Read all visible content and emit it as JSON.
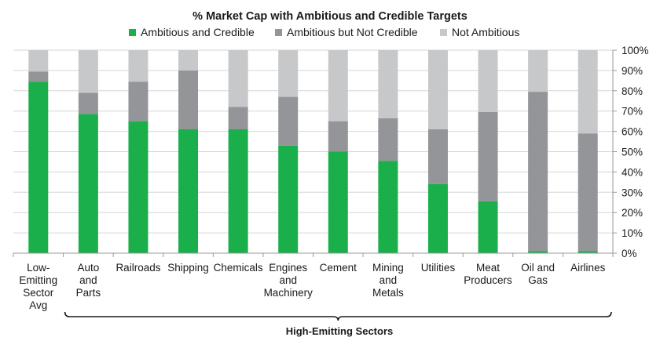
{
  "chart_data": {
    "type": "bar",
    "stacked": true,
    "title": "% Market Cap with Ambitious and Credible Targets",
    "categories": [
      [
        "Low-",
        "Emitting",
        "Sector",
        "Avg"
      ],
      [
        "Auto",
        "and",
        "Parts"
      ],
      [
        "Railroads"
      ],
      [
        "Shipping"
      ],
      [
        "Chemicals"
      ],
      [
        "Engines",
        "and",
        "Machinery"
      ],
      [
        "Cement"
      ],
      [
        "Mining",
        "and",
        "Metals"
      ],
      [
        "Utilities"
      ],
      [
        "Meat",
        "Producers"
      ],
      [
        "Oil and",
        "Gas"
      ],
      [
        "Airlines"
      ]
    ],
    "series": [
      {
        "name": "Ambitious and Credible",
        "color": "#1aaf4b",
        "values": [
          84.5,
          68.5,
          65,
          61,
          61,
          53,
          50,
          45.5,
          34,
          25.5,
          1,
          1
        ]
      },
      {
        "name": "Ambitious but Not Credible",
        "color": "#939598",
        "values": [
          5,
          10.5,
          19.5,
          29,
          11,
          24,
          15,
          21,
          27,
          44,
          78.5,
          58
        ]
      },
      {
        "name": "Not Ambitious",
        "color": "#c7c8ca",
        "values": [
          10.5,
          21,
          15.5,
          10,
          28,
          23,
          35,
          33.5,
          39,
          30.5,
          20.5,
          41
        ]
      }
    ],
    "ylim": [
      0,
      100
    ],
    "yticks": [
      "0%",
      "10%",
      "20%",
      "30%",
      "40%",
      "50%",
      "60%",
      "70%",
      "80%",
      "90%",
      "100%"
    ],
    "bracket_label": "High-Emitting Sectors",
    "legend_position": "top"
  }
}
